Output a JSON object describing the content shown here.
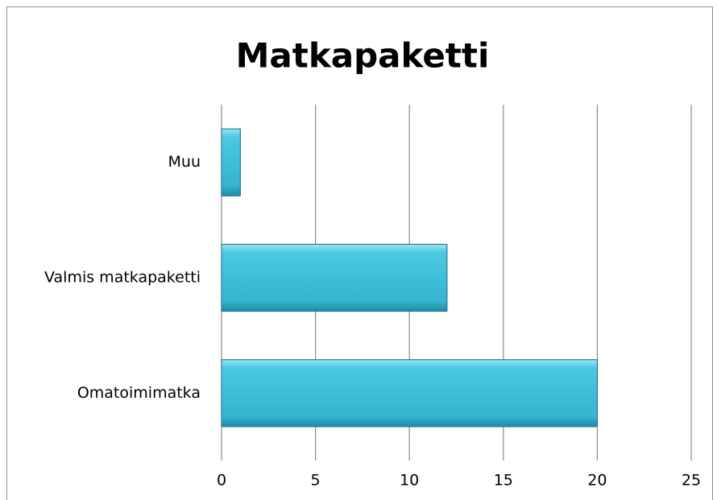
{
  "chart_data": {
    "type": "bar",
    "orientation": "horizontal",
    "title": "Matkapaketti",
    "categories": [
      "Muu",
      "Valmis matkapaketti",
      "Omatoimimatka"
    ],
    "values": [
      1,
      12,
      20
    ],
    "color": "#3fbdd8",
    "xlim": [
      0,
      25
    ],
    "xticks": [
      0,
      5,
      10,
      15,
      20,
      25
    ],
    "grid": true
  }
}
